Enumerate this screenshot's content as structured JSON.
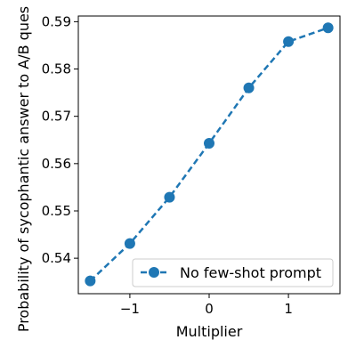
{
  "chart_data": {
    "type": "line",
    "title": "",
    "xlabel": "Multiplier",
    "ylabel": "Probability of sycophantic answer to A/B ques",
    "xlim": [
      -1.65,
      1.65
    ],
    "ylim": [
      0.5325,
      0.5912
    ],
    "x_ticks": [
      -1,
      0,
      1
    ],
    "x_tick_labels": [
      "−1",
      "0",
      "1"
    ],
    "y_ticks": [
      0.54,
      0.55,
      0.56,
      0.57,
      0.58,
      0.59
    ],
    "y_tick_labels": [
      "0.54",
      "0.55",
      "0.56",
      "0.57",
      "0.58",
      "0.59"
    ],
    "grid": false,
    "legend_position": "lower-right",
    "color": "#1f77b4",
    "series": [
      {
        "name": "No few-shot prompt",
        "line_style": "dashed",
        "marker": "circle",
        "points": [
          {
            "x": -1.5,
            "y": 0.5352
          },
          {
            "x": -1.0,
            "y": 0.5431
          },
          {
            "x": -0.5,
            "y": 0.5529
          },
          {
            "x": 0.0,
            "y": 0.5643
          },
          {
            "x": 0.5,
            "y": 0.576
          },
          {
            "x": 1.0,
            "y": 0.5858
          },
          {
            "x": 1.5,
            "y": 0.5887
          }
        ]
      }
    ]
  }
}
